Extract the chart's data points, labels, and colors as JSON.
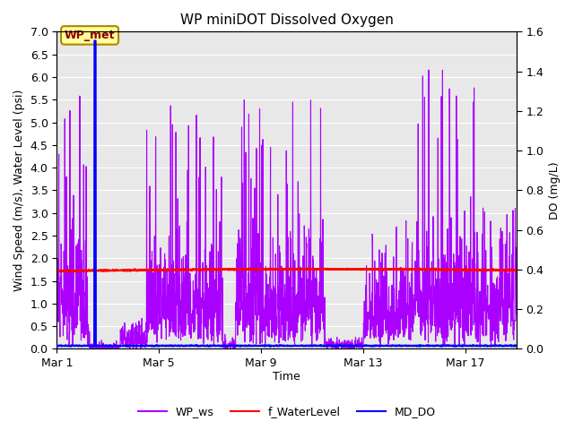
{
  "title": "WP miniDOT Dissolved Oxygen",
  "xlabel": "Time",
  "ylabel_left": "Wind Speed (m/s), Water Level (psi)",
  "ylabel_right": "DO (mg/L)",
  "annotation_text": "WP_met",
  "ylim_left": [
    0.0,
    7.0
  ],
  "ylim_right": [
    0.0,
    1.6
  ],
  "x_ticks": [
    0,
    4,
    8,
    12,
    16
  ],
  "x_tick_labels": [
    "Mar 1",
    "Mar 5",
    "Mar 9",
    "Mar 13",
    "Mar 17"
  ],
  "x_range": [
    0,
    18
  ],
  "bg_color": "#e8e8e8",
  "grid_color": "white",
  "line_ws_color": "#aa00ff",
  "line_wl_color": "red",
  "line_do_color": "blue",
  "legend_labels": [
    "WP_ws",
    "f_WaterLevel",
    "MD_DO"
  ],
  "legend_colors": [
    "#aa00ff",
    "red",
    "blue"
  ],
  "seed": 123,
  "n_points": 2000,
  "x_max": 18.0,
  "do_base": 0.07,
  "do_spike_x": 1.5,
  "do_spike_val": 6.8,
  "wl_base": 1.72,
  "wl_amplitude": 0.04,
  "ann_box_fc": "#ffff99",
  "ann_box_ec": "#aa8800",
  "ann_text_color": "#8b0000"
}
